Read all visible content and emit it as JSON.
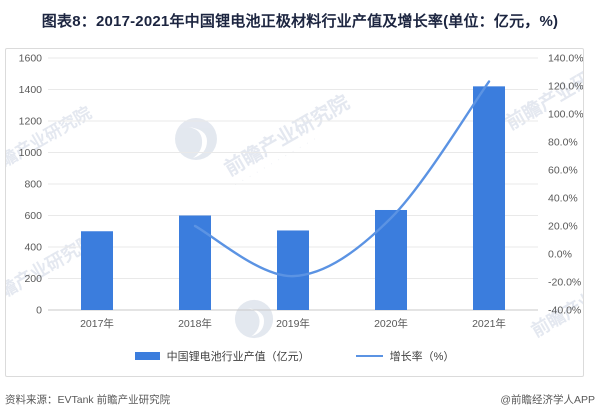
{
  "title": "图表8：2017-2021年中国锂电池正极材料行业产值及增长率(单位：亿元，%)",
  "footer": {
    "source": "资料来源：EVTank 前瞻产业研究院",
    "credit": "@前瞻经济学人APP"
  },
  "watermark": {
    "text": "前瞻产业研究院",
    "logo": "qianzhan-bird-logo"
  },
  "colors": {
    "bar": "#3B7DDD",
    "line": "#5B93E3",
    "grid": "#E9E9E9",
    "baseline": "#C9C9C9",
    "axis_text": "#595959",
    "legend_text": "#404040",
    "title_text": "#1C2540",
    "footer_text": "#595959",
    "border": "#DBDBDB",
    "watermark": "#9EAEC8"
  },
  "chart_data": {
    "type": "bar+line combo",
    "categories": [
      "2017年",
      "2018年",
      "2019年",
      "2020年",
      "2021年"
    ],
    "series": [
      {
        "name": "中国锂电池行业产值（亿元）",
        "type": "bar",
        "axis": "left",
        "values": [
          500,
          600,
          505,
          635,
          1420
        ]
      },
      {
        "name": "增长率（%）",
        "type": "line",
        "axis": "right",
        "values": [
          null,
          20.0,
          -15.8,
          25.7,
          123.2
        ]
      }
    ],
    "left_axis": {
      "min": 0,
      "max": 1600,
      "step": 200,
      "tick_labels": [
        "0",
        "200",
        "400",
        "600",
        "800",
        "1000",
        "1200",
        "1400",
        "1600"
      ]
    },
    "right_axis": {
      "min": -40,
      "max": 140,
      "step": 20,
      "tick_labels": [
        "-40.0%",
        "-20.0%",
        "0.0%",
        "20.0%",
        "40.0%",
        "60.0%",
        "80.0%",
        "100.0%",
        "120.0%",
        "140.0%"
      ]
    },
    "grid": "horizontal",
    "legend_position": "bottom-center"
  }
}
